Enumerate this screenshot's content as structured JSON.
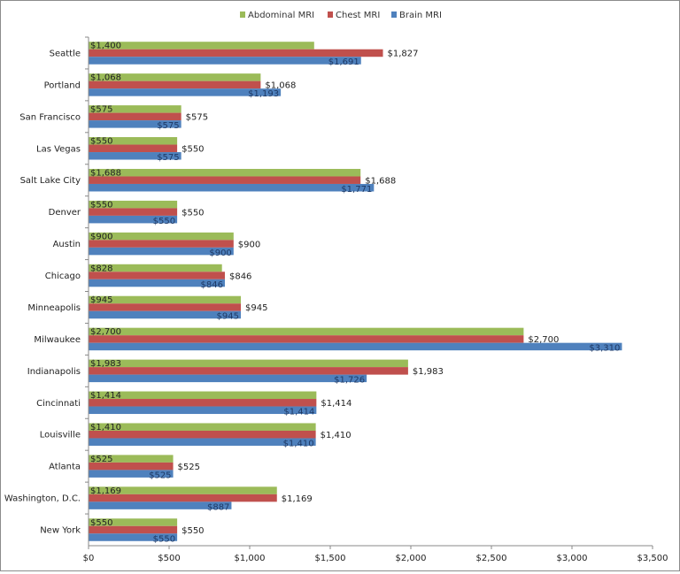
{
  "chart_data": {
    "type": "bar",
    "orientation": "horizontal",
    "categories": [
      "Seattle",
      "Portland",
      "San Francisco",
      "Las Vegas",
      "Salt Lake City",
      "Denver",
      "Austin",
      "Chicago",
      "Minneapolis",
      "Milwaukee",
      "Indianapolis",
      "Cincinnati",
      "Louisville",
      "Atlanta",
      "Washington, D.C.",
      "New York"
    ],
    "series": [
      {
        "name": "Abdominal MRI",
        "color": "#9bbb59",
        "values": [
          1400,
          1068,
          575,
          550,
          1688,
          550,
          900,
          828,
          945,
          2700,
          1983,
          1414,
          1410,
          525,
          1169,
          550
        ],
        "labels": [
          "$1,400",
          "$1,068",
          "$575",
          "$550",
          "$1,688",
          "$550",
          "$900",
          "$828",
          "$945",
          "$2,700",
          "$1,983",
          "$1,414",
          "$1,410",
          "$525",
          "$1,169",
          "$550"
        ]
      },
      {
        "name": "Chest MRI",
        "color": "#c0504d",
        "values": [
          1827,
          1068,
          575,
          550,
          1688,
          550,
          900,
          846,
          945,
          2700,
          1983,
          1414,
          1410,
          525,
          1169,
          550
        ],
        "labels": [
          "$1,827",
          "$1,068",
          "$575",
          "$550",
          "$1,688",
          "$550",
          "$900",
          "$846",
          "$945",
          "$2,700",
          "$1,983",
          "$1,414",
          "$1,410",
          "$525",
          "$1,169",
          "$550"
        ]
      },
      {
        "name": "Brain MRI",
        "color": "#4f81bd",
        "values": [
          1691,
          1193,
          575,
          575,
          1771,
          550,
          900,
          846,
          945,
          3310,
          1726,
          1414,
          1410,
          525,
          887,
          550
        ],
        "labels": [
          "$1,691",
          "$1,193",
          "$575",
          "$575",
          "$1,771",
          "$550",
          "$900",
          "$846",
          "$945",
          "$3,310",
          "$1,726",
          "$1,414",
          "$1,410",
          "$525",
          "$887",
          "$550"
        ]
      }
    ],
    "xlim": [
      0,
      3500
    ],
    "xticks": [
      0,
      500,
      1000,
      1500,
      2000,
      2500,
      3000,
      3500
    ],
    "xtick_labels": [
      "$0",
      "$500",
      "$1,000",
      "$1,500",
      "$2,000",
      "$2,500",
      "$3,000",
      "$3,500"
    ],
    "grid": false,
    "legend": "top",
    "title": "",
    "xlabel": "",
    "ylabel": ""
  }
}
